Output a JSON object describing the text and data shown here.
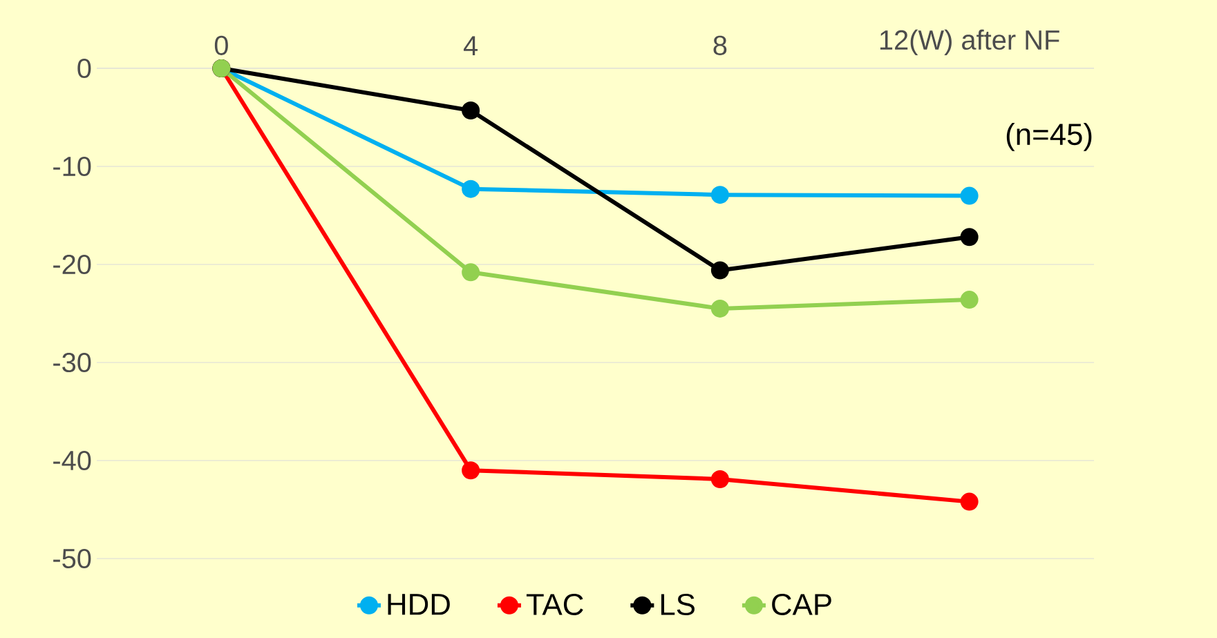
{
  "chart_data": {
    "type": "line",
    "categories": [
      "0",
      "4",
      "8",
      "12(W) after NF"
    ],
    "series": [
      {
        "name": "HDD",
        "color": "#00b0f0",
        "values": [
          0,
          -12.3,
          -12.9,
          -13.0
        ]
      },
      {
        "name": "TAC",
        "color": "#ff0000",
        "values": [
          0,
          -41.0,
          -41.9,
          -44.2
        ]
      },
      {
        "name": "LS",
        "color": "#000000",
        "values": [
          0,
          -4.3,
          -20.6,
          -17.2
        ]
      },
      {
        "name": "CAP",
        "color": "#92d050",
        "values": [
          0,
          -20.8,
          -24.5,
          -23.6
        ]
      }
    ],
    "ylim": [
      -50,
      0
    ],
    "yticks": [
      0,
      -10,
      -20,
      -30,
      -40,
      -50
    ],
    "grid": "y",
    "legend": "bottom",
    "marker": "circle",
    "line_style": "solid",
    "annotations": [
      "(n=45)"
    ]
  }
}
